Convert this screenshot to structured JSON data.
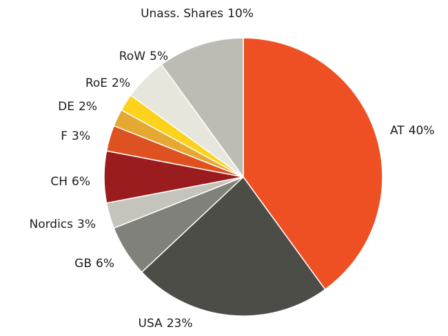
{
  "chart_data": {
    "type": "pie",
    "categories": [
      "AT",
      "USA",
      "GB",
      "Nordics",
      "CH",
      "F",
      "DE",
      "RoE",
      "RoW",
      "Unass. Shares"
    ],
    "values": [
      40,
      23,
      6,
      3,
      6,
      3,
      2,
      2,
      5,
      10
    ],
    "value_labels": [
      "40%",
      "23%",
      "6%",
      "3%",
      "6%",
      "3%",
      "2%",
      "2%",
      "5%",
      "10%"
    ],
    "colors": [
      "#ee5024",
      "#4d4d48",
      "#7f817a",
      "#c5c4bc",
      "#9b1c1f",
      "#dd5220",
      "#e4a833",
      "#fdd21c",
      "#e6e6dd",
      "#bdbcb4"
    ]
  }
}
